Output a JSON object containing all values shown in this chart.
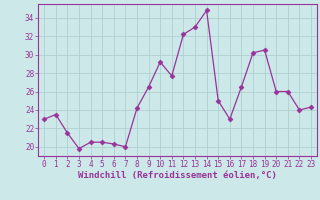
{
  "x": [
    0,
    1,
    2,
    3,
    4,
    5,
    6,
    7,
    8,
    9,
    10,
    11,
    12,
    13,
    14,
    15,
    16,
    17,
    18,
    19,
    20,
    21,
    22,
    23
  ],
  "y": [
    23.0,
    23.5,
    21.5,
    19.8,
    20.5,
    20.5,
    20.3,
    20.0,
    24.2,
    26.5,
    29.2,
    27.7,
    32.2,
    33.0,
    34.8,
    25.0,
    23.0,
    26.5,
    30.2,
    30.5,
    26.0,
    26.0,
    24.0,
    24.3
  ],
  "line_color": "#993399",
  "marker": "D",
  "marker_size": 2.5,
  "bg_color": "#cce8e8",
  "grid_color": "#aacccc",
  "xlabel": "Windchill (Refroidissement éolien,°C)",
  "xlabel_color": "#993399",
  "xlim": [
    -0.5,
    23.5
  ],
  "ylim": [
    19,
    35.5
  ],
  "yticks": [
    20,
    22,
    24,
    26,
    28,
    30,
    32,
    34
  ],
  "xticks": [
    0,
    1,
    2,
    3,
    4,
    5,
    6,
    7,
    8,
    9,
    10,
    11,
    12,
    13,
    14,
    15,
    16,
    17,
    18,
    19,
    20,
    21,
    22,
    23
  ],
  "tick_color": "#993399",
  "tick_fontsize": 5.5,
  "xlabel_fontsize": 6.5,
  "spine_color": "#993399"
}
